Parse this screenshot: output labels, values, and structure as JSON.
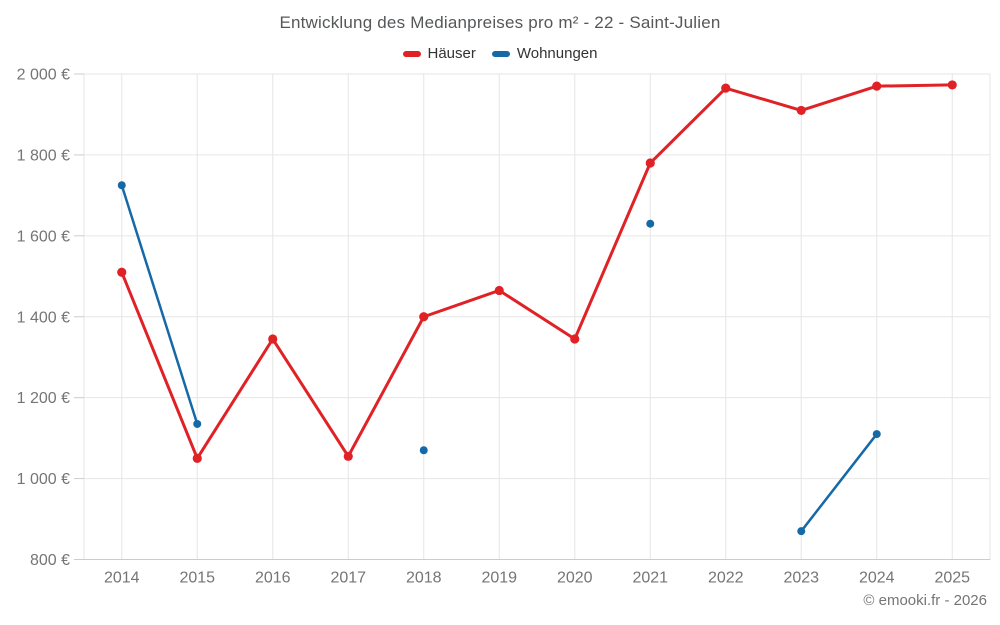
{
  "header": {
    "title": "Entwicklung des Medianpreises pro m² - 22 - Saint-Julien"
  },
  "legend": {
    "items": [
      {
        "label": "Häuser",
        "color": "#e02227"
      },
      {
        "label": "Wohnungen",
        "color": "#1669a7"
      }
    ]
  },
  "footer": {
    "credit": "© emooki.fr - 2026"
  },
  "colors": {
    "grid": "#e6e6e6",
    "axis": "#cccccc",
    "tick_label": "#757575",
    "title": "#555759",
    "legend_text": "#333333"
  },
  "chart_data": {
    "type": "line",
    "title": "Entwicklung des Medianpreises pro m² - 22 - Saint-Julien",
    "categories": [
      "2014",
      "2015",
      "2016",
      "2017",
      "2018",
      "2019",
      "2020",
      "2021",
      "2022",
      "2023",
      "2024",
      "2025"
    ],
    "series": [
      {
        "name": "Häuser",
        "color": "#e02227",
        "values": [
          1510,
          1050,
          1345,
          1055,
          1400,
          1465,
          1345,
          1780,
          1965,
          1910,
          1970,
          1973
        ]
      },
      {
        "name": "Wohnungen",
        "color": "#1669a7",
        "values": [
          1725,
          1135,
          null,
          null,
          1070,
          null,
          null,
          1630,
          null,
          870,
          1110,
          null
        ]
      }
    ],
    "xlabel": "",
    "ylabel": "",
    "ylim": [
      800,
      2000
    ],
    "yticks": [
      800,
      1000,
      1200,
      1400,
      1600,
      1800,
      2000
    ],
    "ytick_labels": [
      "800 €",
      "1 000 €",
      "1 200 €",
      "1 400 €",
      "1 600 €",
      "1 800 €",
      "2 000 €"
    ],
    "ytick_format": "{value} €",
    "grid": true,
    "legend_position": "top",
    "footer": "© emooki.fr - 2026"
  }
}
